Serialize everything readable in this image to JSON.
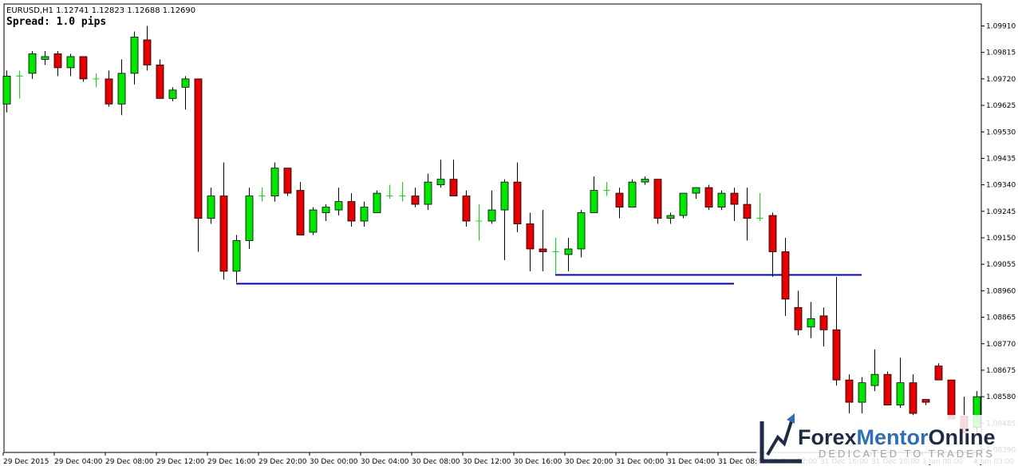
{
  "window": {
    "symbol_line": "EURUSD,H1  1.12741 1.12823 1.12688 1.12690",
    "spread_line": "Spread: 1.0 pips"
  },
  "colors": {
    "bull": "#00e600",
    "bear": "#e60000",
    "wick": "#000000",
    "doji": "#00e600",
    "level_line": "#0000cc",
    "axis": "#000000"
  },
  "watermark": {
    "brand_a": "Forex",
    "brand_b": "Mentor",
    "brand_c": "Online",
    "tagline": "DEDICATED TO TRADERS",
    "color_dark": "#1f2a44",
    "color_blue": "#2f6fb5",
    "icon": "rising-arrow-logo-icon"
  },
  "chart_data": {
    "type": "candlestick",
    "title": "",
    "symbol": "EURUSD",
    "timeframe": "H1",
    "ohlc_header": {
      "open": 1.12741,
      "high": 1.12823,
      "low": 1.12688,
      "close": 1.1269
    },
    "ylim": [
      1.0839,
      1.0991
    ],
    "y_ticks": [
      "1.09910",
      "1.09815",
      "1.09720",
      "1.09625",
      "1.09530",
      "1.09435",
      "1.09340",
      "1.09245",
      "1.09150",
      "1.09055",
      "1.08960",
      "1.08865",
      "1.08770",
      "1.08675",
      "1.08580",
      "1.08485",
      "1.08390"
    ],
    "x_ticks": [
      "29 Dec 2015",
      "29 Dec 04:00",
      "29 Dec 08:00",
      "29 Dec 12:00",
      "29 Dec 16:00",
      "29 Dec 20:00",
      "30 Dec 00:00",
      "30 Dec 04:00",
      "30 Dec 08:00",
      "30 Dec 12:00",
      "30 Dec 16:00",
      "30 Dec 20:00",
      "31 Dec 00:00",
      "31 Dec 04:00",
      "31 Dec 08:00",
      "31 Dec 12:00",
      "31 Dec 16:00",
      "31 Dec 20:00",
      "1 Jan 00:00",
      "4 Jan 03:00"
    ],
    "grid": false,
    "candles": [
      {
        "o": 1.0963,
        "h": 1.0975,
        "l": 1.096,
        "c": 1.0973
      },
      {
        "o": 1.0973,
        "h": 1.0975,
        "l": 1.0965,
        "c": 1.0973
      },
      {
        "o": 1.0974,
        "h": 1.0982,
        "l": 1.0972,
        "c": 1.0981
      },
      {
        "o": 1.0979,
        "h": 1.0982,
        "l": 1.0977,
        "c": 1.098
      },
      {
        "o": 1.0981,
        "h": 1.0982,
        "l": 1.0973,
        "c": 1.0976
      },
      {
        "o": 1.0976,
        "h": 1.0981,
        "l": 1.0973,
        "c": 1.098
      },
      {
        "o": 1.098,
        "h": 1.098,
        "l": 1.0971,
        "c": 1.0972
      },
      {
        "o": 1.0972,
        "h": 1.0974,
        "l": 1.0969,
        "c": 1.0972
      },
      {
        "o": 1.0972,
        "h": 1.0975,
        "l": 1.0962,
        "c": 1.0963
      },
      {
        "o": 1.0963,
        "h": 1.0979,
        "l": 1.0959,
        "c": 1.0974
      },
      {
        "o": 1.0974,
        "h": 1.0989,
        "l": 1.097,
        "c": 1.0987
      },
      {
        "o": 1.0986,
        "h": 1.0991,
        "l": 1.0975,
        "c": 1.0977
      },
      {
        "o": 1.0977,
        "h": 1.0979,
        "l": 1.0965,
        "c": 1.0965
      },
      {
        "o": 1.0965,
        "h": 1.0969,
        "l": 1.0964,
        "c": 1.0968
      },
      {
        "o": 1.0969,
        "h": 1.0973,
        "l": 1.0961,
        "c": 1.0972
      },
      {
        "o": 1.0972,
        "h": 1.0972,
        "l": 1.091,
        "c": 1.0922
      },
      {
        "o": 1.0922,
        "h": 1.0933,
        "l": 1.092,
        "c": 1.093
      },
      {
        "o": 1.093,
        "h": 1.0942,
        "l": 1.09,
        "c": 1.0903
      },
      {
        "o": 1.0903,
        "h": 1.0916,
        "l": 1.0899,
        "c": 1.0914
      },
      {
        "o": 1.0914,
        "h": 1.0933,
        "l": 1.0911,
        "c": 1.093
      },
      {
        "o": 1.093,
        "h": 1.0933,
        "l": 1.0928,
        "c": 1.093
      },
      {
        "o": 1.093,
        "h": 1.0942,
        "l": 1.0928,
        "c": 1.094
      },
      {
        "o": 1.094,
        "h": 1.094,
        "l": 1.093,
        "c": 1.0931
      },
      {
        "o": 1.0932,
        "h": 1.0935,
        "l": 1.0916,
        "c": 1.0916
      },
      {
        "o": 1.0917,
        "h": 1.0926,
        "l": 1.0916,
        "c": 1.0925
      },
      {
        "o": 1.0924,
        "h": 1.0927,
        "l": 1.0921,
        "c": 1.0926
      },
      {
        "o": 1.0925,
        "h": 1.0933,
        "l": 1.0923,
        "c": 1.0928
      },
      {
        "o": 1.0928,
        "h": 1.0931,
        "l": 1.0919,
        "c": 1.0921
      },
      {
        "o": 1.0921,
        "h": 1.0928,
        "l": 1.0919,
        "c": 1.0926
      },
      {
        "o": 1.0924,
        "h": 1.0932,
        "l": 1.0924,
        "c": 1.0931
      },
      {
        "o": 1.093,
        "h": 1.0934,
        "l": 1.0929,
        "c": 1.093
      },
      {
        "o": 1.093,
        "h": 1.0935,
        "l": 1.0928,
        "c": 1.093
      },
      {
        "o": 1.093,
        "h": 1.0933,
        "l": 1.0926,
        "c": 1.0927
      },
      {
        "o": 1.0927,
        "h": 1.0938,
        "l": 1.0925,
        "c": 1.0935
      },
      {
        "o": 1.0934,
        "h": 1.0943,
        "l": 1.0933,
        "c": 1.0936
      },
      {
        "o": 1.0936,
        "h": 1.0943,
        "l": 1.093,
        "c": 1.093
      },
      {
        "o": 1.093,
        "h": 1.0932,
        "l": 1.0919,
        "c": 1.0921
      },
      {
        "o": 1.0921,
        "h": 1.0927,
        "l": 1.0914,
        "c": 1.0921
      },
      {
        "o": 1.0921,
        "h": 1.0932,
        "l": 1.092,
        "c": 1.0925
      },
      {
        "o": 1.0925,
        "h": 1.0936,
        "l": 1.0907,
        "c": 1.0935
      },
      {
        "o": 1.0935,
        "h": 1.0942,
        "l": 1.0917,
        "c": 1.092
      },
      {
        "o": 1.092,
        "h": 1.0924,
        "l": 1.0903,
        "c": 1.0911
      },
      {
        "o": 1.0911,
        "h": 1.0925,
        "l": 1.0903,
        "c": 1.091
      },
      {
        "o": 1.091,
        "h": 1.0915,
        "l": 1.0902,
        "c": 1.091
      },
      {
        "o": 1.0909,
        "h": 1.0915,
        "l": 1.0903,
        "c": 1.0911
      },
      {
        "o": 1.0911,
        "h": 1.0925,
        "l": 1.0908,
        "c": 1.0924
      },
      {
        "o": 1.0924,
        "h": 1.0937,
        "l": 1.0924,
        "c": 1.0932
      },
      {
        "o": 1.0932,
        "h": 1.0935,
        "l": 1.093,
        "c": 1.0932
      },
      {
        "o": 1.0931,
        "h": 1.0933,
        "l": 1.0922,
        "c": 1.0926
      },
      {
        "o": 1.0926,
        "h": 1.0936,
        "l": 1.0926,
        "c": 1.0935
      },
      {
        "o": 1.0935,
        "h": 1.0937,
        "l": 1.0934,
        "c": 1.0936
      },
      {
        "o": 1.0936,
        "h": 1.0936,
        "l": 1.092,
        "c": 1.0922
      },
      {
        "o": 1.0922,
        "h": 1.0924,
        "l": 1.092,
        "c": 1.0923
      },
      {
        "o": 1.0923,
        "h": 1.0931,
        "l": 1.0922,
        "c": 1.0931
      },
      {
        "o": 1.0931,
        "h": 1.0933,
        "l": 1.0929,
        "c": 1.0933
      },
      {
        "o": 1.0933,
        "h": 1.0934,
        "l": 1.0925,
        "c": 1.0926
      },
      {
        "o": 1.0926,
        "h": 1.0932,
        "l": 1.0925,
        "c": 1.0931
      },
      {
        "o": 1.0931,
        "h": 1.0933,
        "l": 1.0921,
        "c": 1.0927
      },
      {
        "o": 1.0927,
        "h": 1.0933,
        "l": 1.0914,
        "c": 1.0922
      },
      {
        "o": 1.0922,
        "h": 1.0931,
        "l": 1.0921,
        "c": 1.0922
      },
      {
        "o": 1.0923,
        "h": 1.0924,
        "l": 1.0901,
        "c": 1.091
      },
      {
        "o": 1.091,
        "h": 1.0915,
        "l": 1.0887,
        "c": 1.0893
      },
      {
        "o": 1.089,
        "h": 1.0896,
        "l": 1.088,
        "c": 1.0882
      },
      {
        "o": 1.0883,
        "h": 1.0892,
        "l": 1.0879,
        "c": 1.0886
      },
      {
        "o": 1.0887,
        "h": 1.089,
        "l": 1.0876,
        "c": 1.0882
      },
      {
        "o": 1.0882,
        "h": 1.0901,
        "l": 1.0862,
        "c": 1.0864
      },
      {
        "o": 1.0864,
        "h": 1.0866,
        "l": 1.0852,
        "c": 1.0856
      },
      {
        "o": 1.0856,
        "h": 1.0865,
        "l": 1.0852,
        "c": 1.0863
      },
      {
        "o": 1.0862,
        "h": 1.0875,
        "l": 1.086,
        "c": 1.0866
      },
      {
        "o": 1.0866,
        "h": 1.0867,
        "l": 1.0855,
        "c": 1.0855
      },
      {
        "o": 1.0855,
        "h": 1.0872,
        "l": 1.0854,
        "c": 1.0863
      },
      {
        "o": 1.0863,
        "h": 1.0866,
        "l": 1.0851,
        "c": 1.0852
      },
      {
        "o": 1.0857,
        "h": 1.0857,
        "l": 1.0855,
        "c": 1.0856
      },
      {
        "o": 1.0869,
        "h": 1.087,
        "l": 1.0864,
        "c": 1.0864
      },
      {
        "o": 1.0864,
        "h": 1.0864,
        "l": 1.085,
        "c": 1.085
      },
      {
        "o": 1.0851,
        "h": 1.0858,
        "l": 1.0845,
        "c": 1.0845
      },
      {
        "o": 1.0847,
        "h": 1.086,
        "l": 1.0845,
        "c": 1.0858
      }
    ],
    "horizontal_lines": [
      {
        "price": 1.08988,
        "from_index": 18,
        "to_index": 57
      },
      {
        "price": 1.09017,
        "from_index": 43,
        "to_index": 67
      }
    ]
  }
}
